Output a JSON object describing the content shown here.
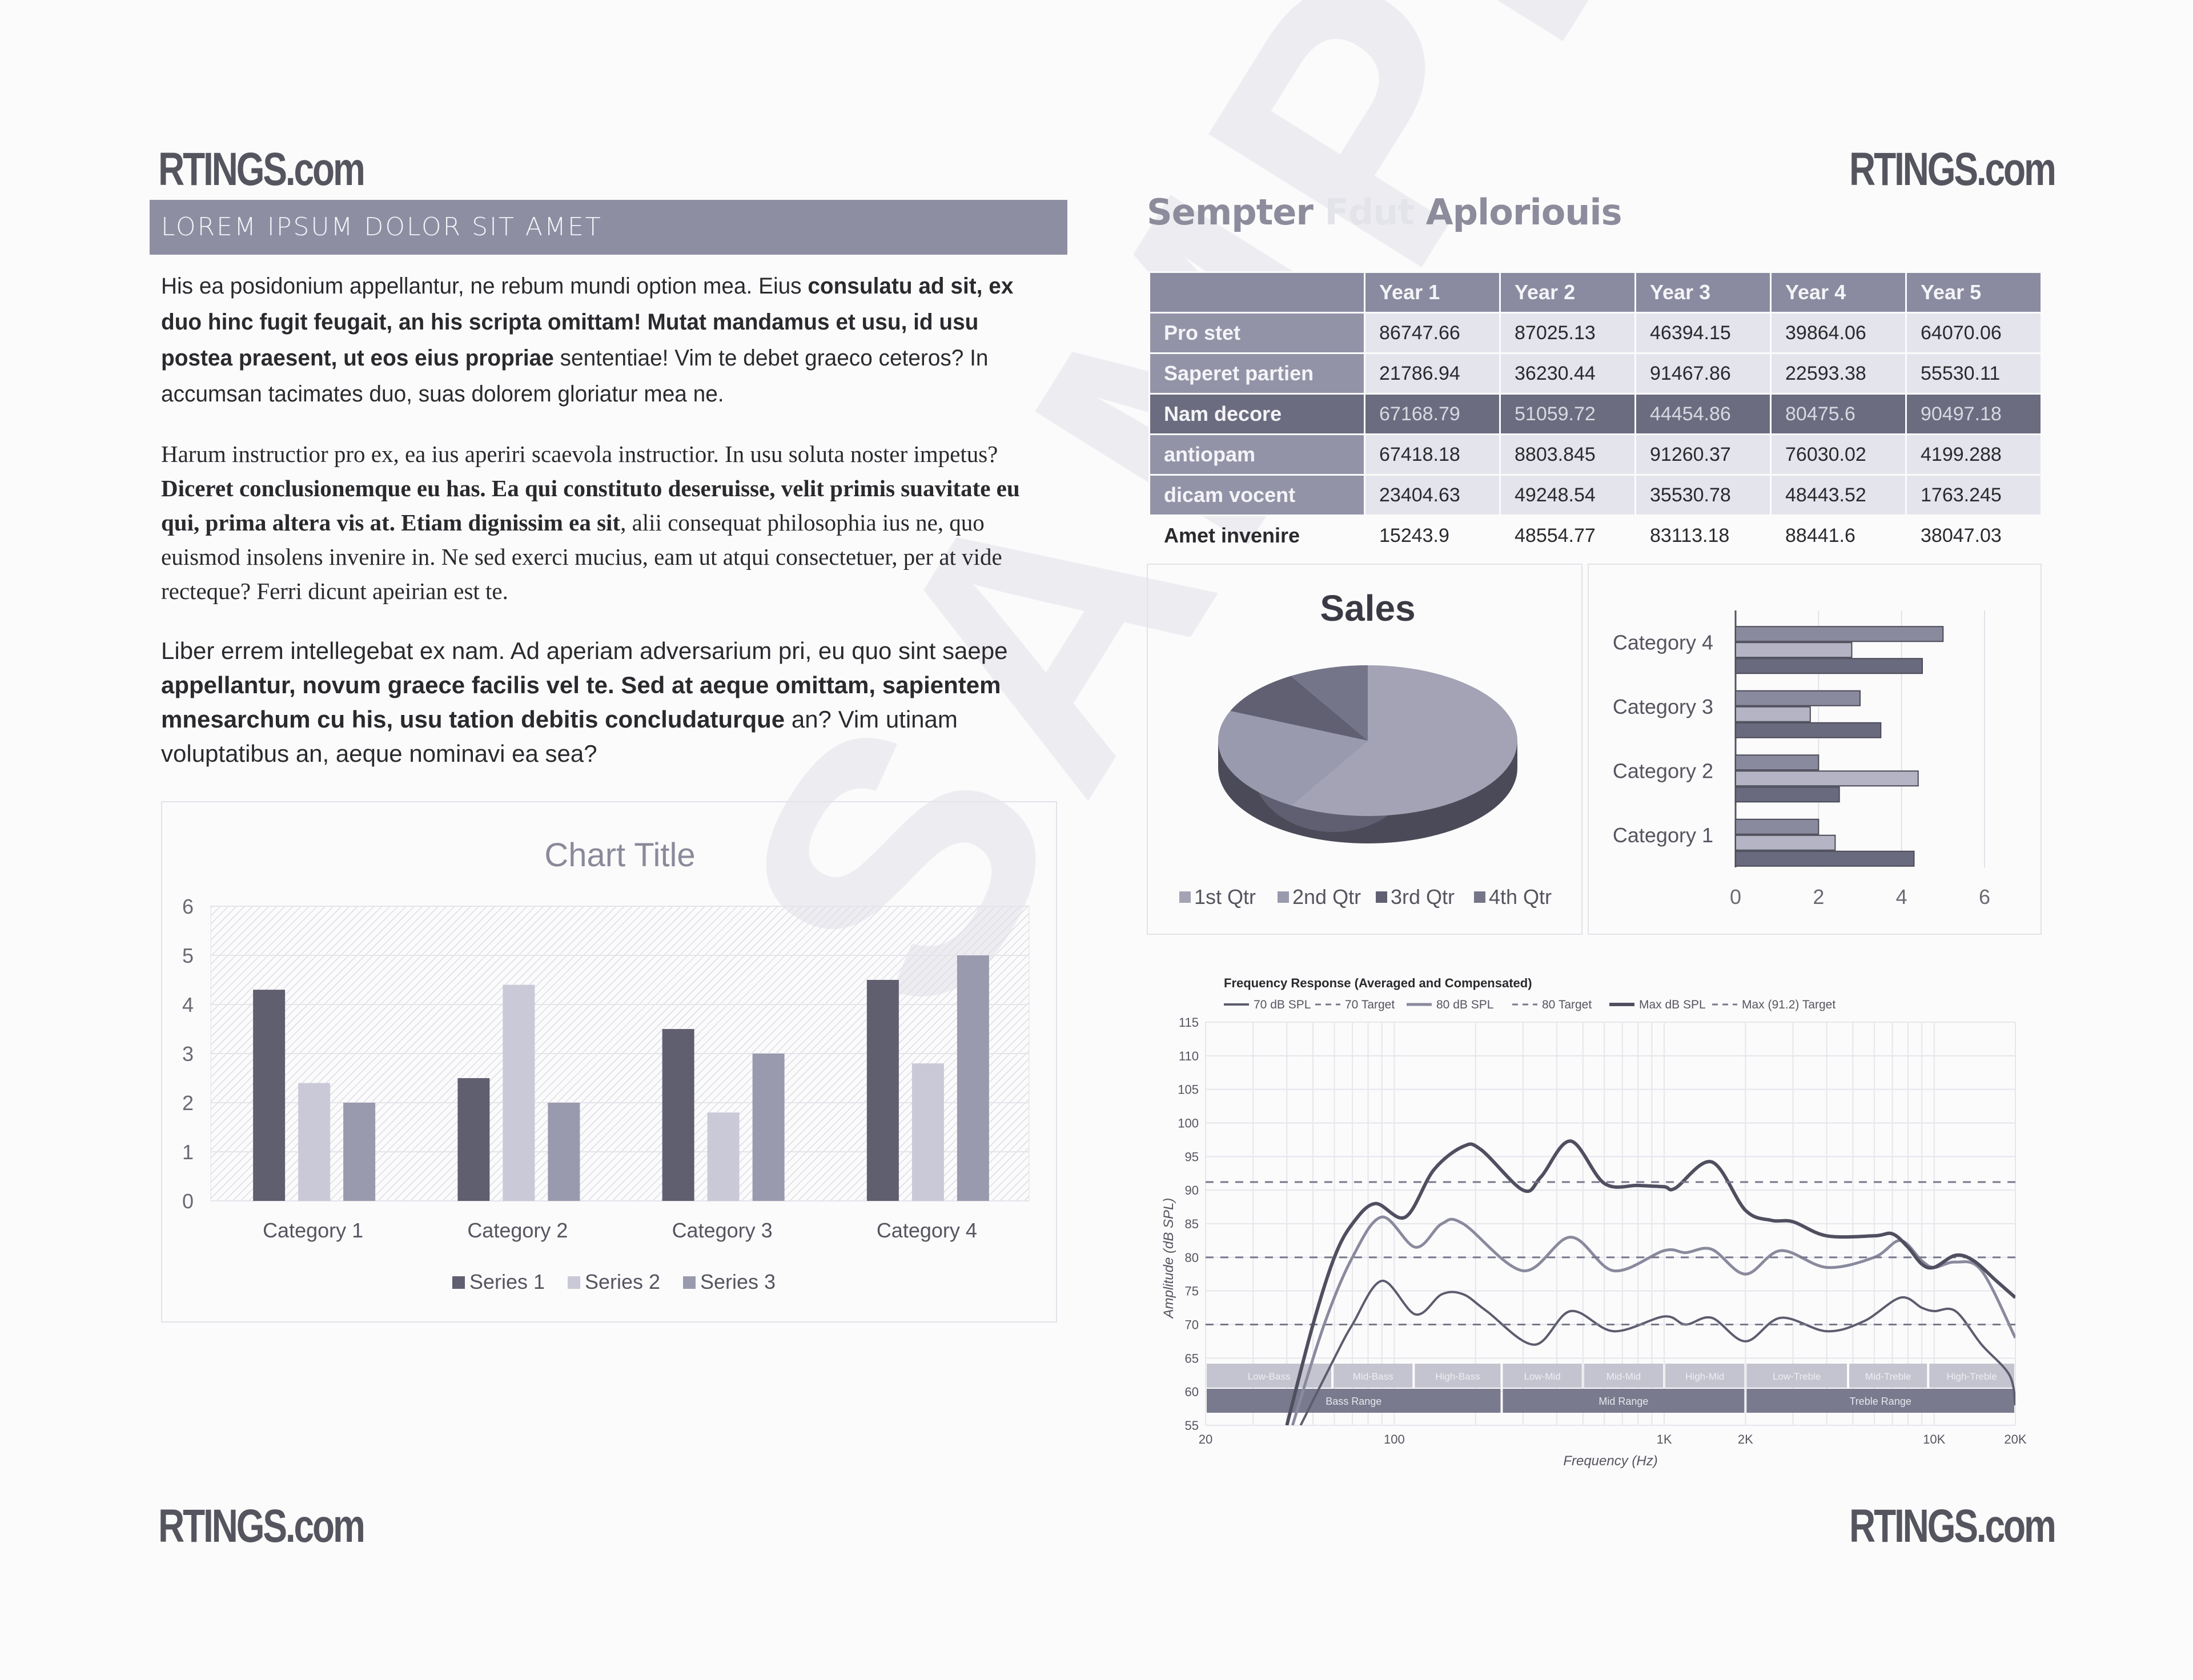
{
  "logo": "RTINGS.com",
  "watermark": "SAMPLE",
  "left": {
    "header": "LOREM IPSUM DOLOR SIT AMET",
    "p1": [
      {
        "t": "His ea posidonium appellantur, ne rebum mundi option mea. Eius ",
        "b": false
      },
      {
        "t": "consulatu ad sit, ex duo hinc fugit feugait, an his scripta omittam! Mutat mandamus et usu, id usu postea praesent, ut eos eius propriae",
        "b": true
      },
      {
        "t": " sententiae! Vim te debet graeco ceteros? In accumsan tacimates duo, suas dolorem gloriatur mea ne.",
        "b": false
      }
    ],
    "p2": [
      {
        "t": "Harum instructior pro ex, ea ius aperiri scaevola instructior. In usu soluta noster impetus? ",
        "b": false
      },
      {
        "t": "Diceret conclusionemque eu has. Ea qui constituto deseruisse, velit primis suavitate eu qui, prima altera vis at. Etiam dignissim ea sit",
        "b": true
      },
      {
        "t": ", alii consequat philosophia ius ne, quo euismod insolens invenire in. Ne sed exerci mucius, eam ut atqui consectetuer, per at vide recteque? Ferri dicunt apeirian est te.",
        "b": false
      }
    ],
    "p3": [
      {
        "t": "Liber errem intellegebat ex nam. Ad aperiam adversarium pri, eu quo sint saepe ",
        "b": false
      },
      {
        "t": "appellantur, novum graece facilis vel te. Sed at aeque omittam, sapientem mnesarchum cu his, usu tation debitis concludaturque",
        "b": true
      },
      {
        "t": " an? Vim utinam voluptatibus an, aeque nominavi ea sea?",
        "b": false
      }
    ]
  },
  "right": {
    "title_main": "Sempter ",
    "title_fade": "Fdut ",
    "title_end": "Aploriouis",
    "table": {
      "columns": [
        "",
        "Year 1",
        "Year 2",
        "Year 3",
        "Year 4",
        "Year 5"
      ],
      "rows": [
        {
          "label": "Pro stet",
          "values": [
            "86747.66",
            "87025.13",
            "46394.15",
            "39864.06",
            "64070.06"
          ],
          "style": "normal"
        },
        {
          "label": "Saperet partien",
          "values": [
            "21786.94",
            "36230.44",
            "91467.86",
            "22593.38",
            "55530.11"
          ],
          "style": "normal"
        },
        {
          "label": "Nam decore",
          "values": [
            "67168.79",
            "51059.72",
            "44454.86",
            "80475.6",
            "90497.18"
          ],
          "style": "dark"
        },
        {
          "label": "antiopam",
          "values": [
            "67418.18",
            "8803.845",
            "91260.37",
            "76030.02",
            "4199.288"
          ],
          "style": "normal"
        },
        {
          "label": "dicam vocent",
          "values": [
            "23404.63",
            "49248.54",
            "35530.78",
            "48443.52",
            "1763.245"
          ],
          "style": "normal"
        },
        {
          "label": "Amet invenire",
          "values": [
            "15243.9",
            "48554.77",
            "83113.18",
            "88441.6",
            "38047.03"
          ],
          "style": "plain"
        }
      ]
    }
  },
  "chart_data": [
    {
      "type": "bar",
      "title": "Chart Title",
      "categories": [
        "Category 1",
        "Category 2",
        "Category 3",
        "Category 4"
      ],
      "series": [
        {
          "name": "Series 1",
          "values": [
            4.3,
            2.5,
            3.5,
            4.5
          ],
          "color": "#5f5f70"
        },
        {
          "name": "Series 2",
          "values": [
            2.4,
            4.4,
            1.8,
            2.8
          ],
          "color": "#c9c9d7"
        },
        {
          "name": "Series 3",
          "values": [
            2,
            2,
            3,
            5
          ],
          "color": "#9a9aae"
        }
      ],
      "ylim": [
        0,
        6
      ],
      "yticks": [
        "0",
        "1",
        "2",
        "3",
        "4",
        "5",
        "6"
      ],
      "grid": true,
      "legend": "bottom"
    },
    {
      "type": "pie",
      "title": "Sales",
      "categories": [
        "1st Qtr",
        "2nd Qtr",
        "3rd Qtr",
        "4th Qtr"
      ],
      "values": [
        8.2,
        3.2,
        1.4,
        1.2
      ],
      "colors": [
        "#a3a3b5",
        "#9a9aae",
        "#606072",
        "#75758a"
      ],
      "legend": "bottom"
    },
    {
      "type": "bar",
      "orientation": "horizontal",
      "categories": [
        "Category 1",
        "Category 2",
        "Category 3",
        "Category 4"
      ],
      "series": [
        {
          "values": [
            4.3,
            2.5,
            3.5,
            4.5
          ],
          "color": "#6a6a7e"
        },
        {
          "values": [
            2.4,
            4.4,
            1.8,
            2.8
          ],
          "color": "#b4b4c4"
        },
        {
          "values": [
            2,
            2,
            3,
            5
          ],
          "color": "#8a8a9e"
        }
      ],
      "xlim": [
        0,
        6
      ],
      "xticks": [
        "0",
        "2",
        "4",
        "6"
      ],
      "grid": true
    },
    {
      "type": "line",
      "title": "Frequency Response (Averaged and Compensated)",
      "xlabel": "Frequency (Hz)",
      "ylabel": "Amplitude (dB SPL)",
      "xscale": "log",
      "xlim": [
        20,
        20000
      ],
      "ylim": [
        55,
        115
      ],
      "xticks": [
        {
          "v": 20,
          "l": "20"
        },
        {
          "v": 100,
          "l": "100"
        },
        {
          "v": 1000,
          "l": "1K"
        },
        {
          "v": 2000,
          "l": "2K"
        },
        {
          "v": 10000,
          "l": "10K"
        },
        {
          "v": 20000,
          "l": "20K"
        }
      ],
      "yticks": [
        55,
        60,
        65,
        70,
        75,
        80,
        85,
        90,
        95,
        100,
        105,
        110,
        115
      ],
      "grid": true,
      "legend": "top",
      "series": [
        {
          "name": "70 dB SPL",
          "dash": false,
          "color": "#5c5c6e",
          "width": 4,
          "points": [
            [
              45,
              55
            ],
            [
              60,
              65
            ],
            [
              70,
              70
            ],
            [
              90,
              76.5
            ],
            [
              120,
              71.5
            ],
            [
              150,
              74.5
            ],
            [
              180,
              74.5
            ],
            [
              220,
              72
            ],
            [
              330,
              67
            ],
            [
              450,
              72
            ],
            [
              650,
              69
            ],
            [
              1000,
              71.2
            ],
            [
              1200,
              70
            ],
            [
              1500,
              71
            ],
            [
              2000,
              67.5
            ],
            [
              2700,
              71
            ],
            [
              4000,
              69
            ],
            [
              5500,
              70.5
            ],
            [
              7500,
              74
            ],
            [
              9000,
              72.5
            ],
            [
              10000,
              72
            ],
            [
              12000,
              72
            ],
            [
              15000,
              67
            ],
            [
              19000,
              62.5
            ],
            [
              20000,
              58
            ]
          ]
        },
        {
          "name": "70 Target",
          "dash": true,
          "color": "#77778a",
          "width": 3,
          "points": [
            [
              20,
              70
            ],
            [
              20000,
              70
            ]
          ]
        },
        {
          "name": "80 dB SPL",
          "dash": false,
          "color": "#8a8a9e",
          "width": 5,
          "points": [
            [
              42,
              55
            ],
            [
              55,
              70
            ],
            [
              70,
              80
            ],
            [
              90,
              86
            ],
            [
              120,
              81.5
            ],
            [
              150,
              85
            ],
            [
              180,
              85
            ],
            [
              300,
              78
            ],
            [
              450,
              83
            ],
            [
              650,
              78
            ],
            [
              1000,
              81
            ],
            [
              1200,
              80.7
            ],
            [
              1500,
              81.2
            ],
            [
              2000,
              77.5
            ],
            [
              2700,
              81
            ],
            [
              4000,
              78.5
            ],
            [
              6000,
              80
            ],
            [
              7500,
              82.5
            ],
            [
              9000,
              79.5
            ],
            [
              10000,
              78.5
            ],
            [
              12000,
              79.3
            ],
            [
              15000,
              78
            ],
            [
              20000,
              68
            ]
          ]
        },
        {
          "name": "80 Target",
          "dash": true,
          "color": "#77778a",
          "width": 3,
          "points": [
            [
              20,
              80
            ],
            [
              20000,
              80
            ]
          ]
        },
        {
          "name": "Max dB SPL",
          "dash": false,
          "color": "#4f4f60",
          "width": 6,
          "points": [
            [
              40,
              55
            ],
            [
              50,
              70
            ],
            [
              60,
              80
            ],
            [
              70,
              85
            ],
            [
              85,
              88
            ],
            [
              110,
              86
            ],
            [
              140,
              93
            ],
            [
              180,
              96.5
            ],
            [
              210,
              96
            ],
            [
              300,
              90
            ],
            [
              350,
              92
            ],
            [
              450,
              97.3
            ],
            [
              600,
              91
            ],
            [
              800,
              90.7
            ],
            [
              1000,
              90.5
            ],
            [
              1100,
              90.3
            ],
            [
              1500,
              94.2
            ],
            [
              2000,
              87
            ],
            [
              2500,
              85.5
            ],
            [
              3000,
              85.3
            ],
            [
              4000,
              83.2
            ],
            [
              6000,
              83.2
            ],
            [
              7000,
              83.5
            ],
            [
              8000,
              81.5
            ],
            [
              9000,
              79
            ],
            [
              10000,
              78.5
            ],
            [
              12000,
              80.3
            ],
            [
              14000,
              79.5
            ],
            [
              17000,
              76.5
            ],
            [
              20000,
              74
            ]
          ]
        },
        {
          "name": "Max (91.2) Target",
          "dash": true,
          "color": "#77778a",
          "width": 3,
          "points": [
            [
              20,
              91.2
            ],
            [
              20000,
              91.2
            ]
          ]
        }
      ],
      "bands": [
        {
          "label": "Low-Bass",
          "from": 20,
          "to": 59
        },
        {
          "label": "Mid-Bass",
          "from": 59,
          "to": 118
        },
        {
          "label": "High-Bass",
          "from": 118,
          "to": 250
        },
        {
          "label": "Low-Mid",
          "from": 250,
          "to": 500
        },
        {
          "label": "Mid-Mid",
          "from": 500,
          "to": 1000
        },
        {
          "label": "High-Mid",
          "from": 1000,
          "to": 2000
        },
        {
          "label": "Low-Treble",
          "from": 2000,
          "to": 4800
        },
        {
          "label": "Mid-Treble",
          "from": 4800,
          "to": 9500
        },
        {
          "label": "High-Treble",
          "from": 9500,
          "to": 20000
        }
      ],
      "ranges": [
        {
          "label": "Bass Range",
          "from": 20,
          "to": 250
        },
        {
          "label": "Mid Range",
          "from": 250,
          "to": 2000
        },
        {
          "label": "Treble Range",
          "from": 2000,
          "to": 20000
        }
      ]
    }
  ]
}
